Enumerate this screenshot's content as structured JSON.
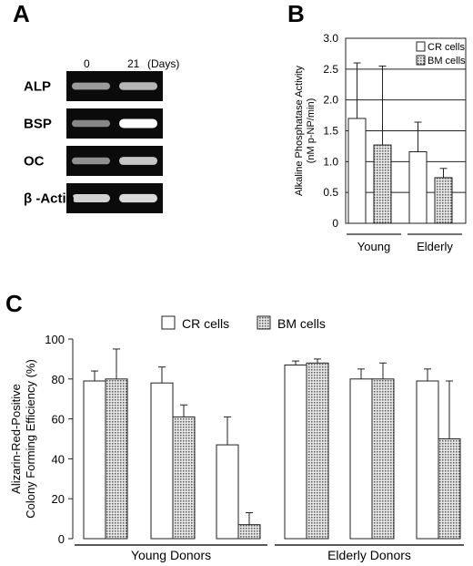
{
  "panel_a": {
    "letter": "A",
    "day_labels": [
      "0",
      "21",
      "(Days)"
    ],
    "genes": [
      {
        "label": "ALP",
        "intensities": [
          0.45,
          0.6
        ]
      },
      {
        "label": "BSP",
        "intensities": [
          0.35,
          1.0
        ]
      },
      {
        "label": "OC",
        "intensities": [
          0.4,
          0.7
        ]
      },
      {
        "label": "β -Actin",
        "intensities": [
          0.75,
          0.8
        ]
      }
    ]
  },
  "panel_b": {
    "letter": "B",
    "chart_data": {
      "type": "bar",
      "ylabel_line1": "Alkaline Phosphatase Activity",
      "ylabel_line2": "(nM p-NP/min)",
      "ylim": [
        0,
        3.0
      ],
      "yticks": [
        "0",
        "0.5",
        "1.0",
        "1.5",
        "2.0",
        "2.5",
        "3.0"
      ],
      "categories": [
        "Young",
        "Elderly"
      ],
      "grid": true,
      "legend_position": "top-right",
      "series": [
        {
          "name": "CR cells",
          "values": [
            1.7,
            1.16
          ],
          "errors": [
            0.9,
            0.48
          ],
          "fill": "#ffffff"
        },
        {
          "name": "BM cells",
          "values": [
            1.27,
            0.74
          ],
          "errors": [
            1.28,
            0.15
          ],
          "fill": "#b8b8b8"
        }
      ]
    }
  },
  "panel_c": {
    "letter": "C",
    "chart_data": {
      "type": "bar",
      "ylabel_line1": "Alizarin-Red-Positive",
      "ylabel_line2": "Colony Forming Efficiency (%)",
      "ylim": [
        0,
        100
      ],
      "yticks": [
        "0",
        "20",
        "40",
        "60",
        "80",
        "100"
      ],
      "groups": [
        "Young Donors",
        "Elderly Donors"
      ],
      "legend_position": "top",
      "series": [
        {
          "name": "CR cells",
          "values": [
            79,
            78,
            47,
            87,
            80,
            79
          ],
          "errors": [
            5,
            8,
            14,
            2,
            5,
            6
          ],
          "fill": "#ffffff"
        },
        {
          "name": "BM cells",
          "values": [
            80,
            61,
            7,
            88,
            80,
            50
          ],
          "errors": [
            15,
            6,
            6,
            2,
            8,
            29
          ],
          "fill": "#b8b8b8"
        }
      ]
    }
  }
}
